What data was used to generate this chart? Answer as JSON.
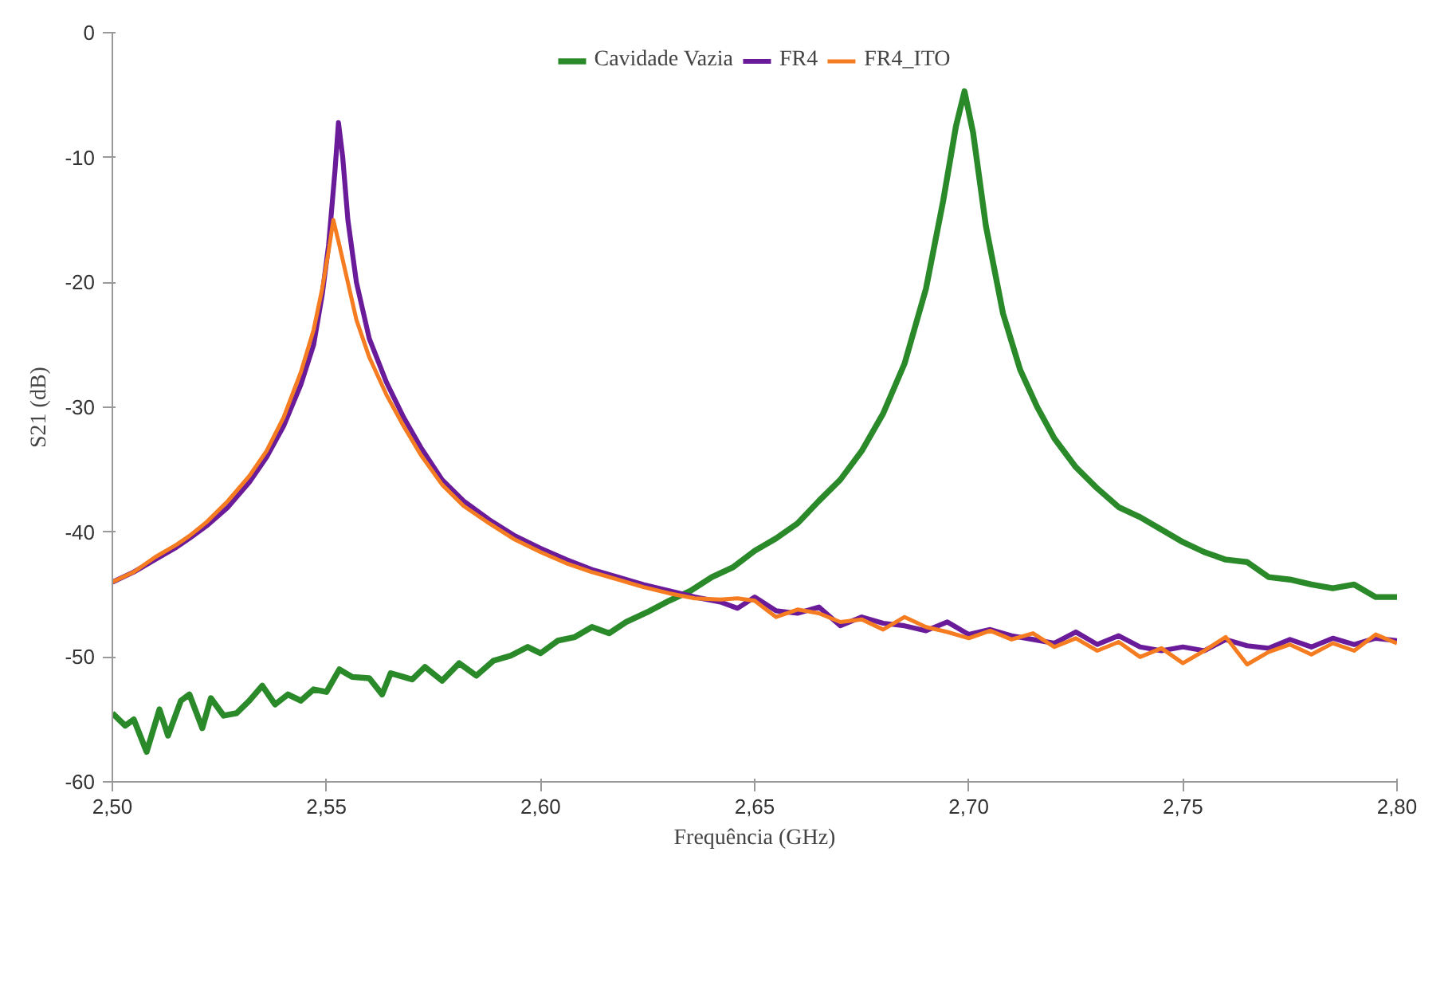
{
  "chart_data": {
    "type": "line",
    "xlabel": "Frequência (GHz)",
    "ylabel": "S21 (dB)",
    "xlim": [
      2.5,
      2.8
    ],
    "ylim": [
      -60,
      0
    ],
    "xticks": [
      {
        "value": 2.5,
        "label": "2,50"
      },
      {
        "value": 2.55,
        "label": "2,55"
      },
      {
        "value": 2.6,
        "label": "2,60"
      },
      {
        "value": 2.65,
        "label": "2,65"
      },
      {
        "value": 2.7,
        "label": "2,70"
      },
      {
        "value": 2.75,
        "label": "2,75"
      },
      {
        "value": 2.8,
        "label": "2,80"
      }
    ],
    "yticks": [
      0,
      -10,
      -20,
      -30,
      -40,
      -50,
      -60
    ],
    "grid": false,
    "legend": "top",
    "marker": "none",
    "line_style": "solid",
    "series": [
      {
        "name": "Cavidade Vazia",
        "color": "#2a8a2a",
        "x": [
          2.5,
          2.503,
          2.505,
          2.508,
          2.511,
          2.513,
          2.516,
          2.518,
          2.521,
          2.523,
          2.526,
          2.529,
          2.532,
          2.535,
          2.538,
          2.541,
          2.544,
          2.547,
          2.55,
          2.553,
          2.556,
          2.56,
          2.563,
          2.565,
          2.57,
          2.573,
          2.577,
          2.581,
          2.585,
          2.589,
          2.593,
          2.597,
          2.6,
          2.604,
          2.608,
          2.612,
          2.616,
          2.62,
          2.625,
          2.63,
          2.635,
          2.64,
          2.645,
          2.65,
          2.655,
          2.66,
          2.665,
          2.67,
          2.675,
          2.68,
          2.685,
          2.69,
          2.694,
          2.697,
          2.699,
          2.701,
          2.704,
          2.708,
          2.712,
          2.716,
          2.72,
          2.725,
          2.73,
          2.735,
          2.74,
          2.745,
          2.75,
          2.755,
          2.76,
          2.765,
          2.77,
          2.775,
          2.78,
          2.785,
          2.79,
          2.795,
          2.8
        ],
        "values": [
          -54.5,
          -55.5,
          -55,
          -57.6,
          -54.2,
          -56.3,
          -53.5,
          -53,
          -55.7,
          -53.3,
          -54.7,
          -54.5,
          -53.5,
          -52.3,
          -53.8,
          -53,
          -53.5,
          -52.6,
          -52.8,
          -51,
          -51.6,
          -51.7,
          -53,
          -51.3,
          -51.8,
          -50.8,
          -51.9,
          -50.5,
          -51.5,
          -50.3,
          -49.9,
          -49.2,
          -49.7,
          -48.7,
          -48.4,
          -47.6,
          -48.1,
          -47.2,
          -46.4,
          -45.5,
          -44.7,
          -43.6,
          -42.8,
          -41.5,
          -40.5,
          -39.3,
          -37.5,
          -35.8,
          -33.5,
          -30.5,
          -26.5,
          -20.5,
          -13.5,
          -7.5,
          -4.7,
          -8,
          -15.5,
          -22.5,
          -27,
          -30,
          -32.5,
          -34.8,
          -36.5,
          -38,
          -38.8,
          -39.8,
          -40.8,
          -41.6,
          -42.2,
          -42.4,
          -43.6,
          -43.8,
          -44.2,
          -44.5,
          -44.2,
          -45.2,
          -45.2
        ]
      },
      {
        "name": "FR4",
        "color": "#6a1b9a",
        "x": [
          2.5,
          2.505,
          2.51,
          2.515,
          2.518,
          2.522,
          2.527,
          2.532,
          2.536,
          2.54,
          2.544,
          2.547,
          2.549,
          2.5505,
          2.552,
          2.5528,
          2.5538,
          2.555,
          2.557,
          2.56,
          2.564,
          2.568,
          2.572,
          2.577,
          2.582,
          2.588,
          2.594,
          2.6,
          2.606,
          2.612,
          2.618,
          2.624,
          2.63,
          2.636,
          2.642,
          2.646,
          2.65,
          2.655,
          2.66,
          2.665,
          2.67,
          2.675,
          2.68,
          2.685,
          2.69,
          2.695,
          2.7,
          2.705,
          2.71,
          2.715,
          2.72,
          2.725,
          2.73,
          2.735,
          2.74,
          2.745,
          2.75,
          2.755,
          2.76,
          2.765,
          2.77,
          2.775,
          2.78,
          2.785,
          2.79,
          2.795,
          2.8
        ],
        "values": [
          -44,
          -43.2,
          -42.2,
          -41.2,
          -40.5,
          -39.5,
          -38,
          -36,
          -34,
          -31.5,
          -28.2,
          -25,
          -21,
          -17,
          -11,
          -7.2,
          -10,
          -15,
          -20,
          -24.5,
          -28,
          -30.8,
          -33.2,
          -35.8,
          -37.5,
          -39,
          -40.3,
          -41.3,
          -42.2,
          -43,
          -43.6,
          -44.2,
          -44.7,
          -45.2,
          -45.6,
          -46.1,
          -45.2,
          -46.3,
          -46.5,
          -46,
          -47.5,
          -46.8,
          -47.3,
          -47.5,
          -47.9,
          -47.2,
          -48.2,
          -47.8,
          -48.3,
          -48.6,
          -48.9,
          -48.0,
          -49.0,
          -48.3,
          -49.2,
          -49.5,
          -49.2,
          -49.5,
          -48.6,
          -49.1,
          -49.3,
          -48.6,
          -49.2,
          -48.5,
          -49.0,
          -48.5,
          -48.7
        ]
      },
      {
        "name": "FR4_ITO",
        "color": "#f57c20",
        "x": [
          2.5,
          2.505,
          2.51,
          2.515,
          2.518,
          2.522,
          2.527,
          2.532,
          2.536,
          2.54,
          2.544,
          2.547,
          2.549,
          2.5505,
          2.5516,
          2.553,
          2.555,
          2.557,
          2.56,
          2.564,
          2.568,
          2.572,
          2.577,
          2.582,
          2.588,
          2.594,
          2.6,
          2.606,
          2.612,
          2.618,
          2.624,
          2.63,
          2.636,
          2.642,
          2.646,
          2.65,
          2.655,
          2.66,
          2.665,
          2.67,
          2.675,
          2.68,
          2.685,
          2.69,
          2.695,
          2.7,
          2.705,
          2.71,
          2.715,
          2.72,
          2.725,
          2.73,
          2.735,
          2.74,
          2.745,
          2.75,
          2.755,
          2.76,
          2.765,
          2.77,
          2.775,
          2.78,
          2.785,
          2.79,
          2.795,
          2.8
        ],
        "values": [
          -44,
          -43.2,
          -42.0,
          -41.0,
          -40.3,
          -39.2,
          -37.5,
          -35.5,
          -33.5,
          -30.8,
          -27.2,
          -23.8,
          -20.5,
          -17.5,
          -15,
          -17,
          -20,
          -23,
          -26,
          -29,
          -31.5,
          -33.8,
          -36.2,
          -37.9,
          -39.3,
          -40.6,
          -41.6,
          -42.5,
          -43.2,
          -43.8,
          -44.4,
          -44.9,
          -45.3,
          -45.4,
          -45.3,
          -45.5,
          -46.8,
          -46.2,
          -46.5,
          -47.2,
          -47.0,
          -47.8,
          -46.8,
          -47.6,
          -48.0,
          -48.5,
          -47.9,
          -48.6,
          -48.1,
          -49.2,
          -48.5,
          -49.5,
          -48.8,
          -50.0,
          -49.3,
          -50.5,
          -49.5,
          -48.4,
          -50.6,
          -49.6,
          -49.0,
          -49.8,
          -48.9,
          -49.5,
          -48.2,
          -48.9
        ]
      }
    ]
  }
}
